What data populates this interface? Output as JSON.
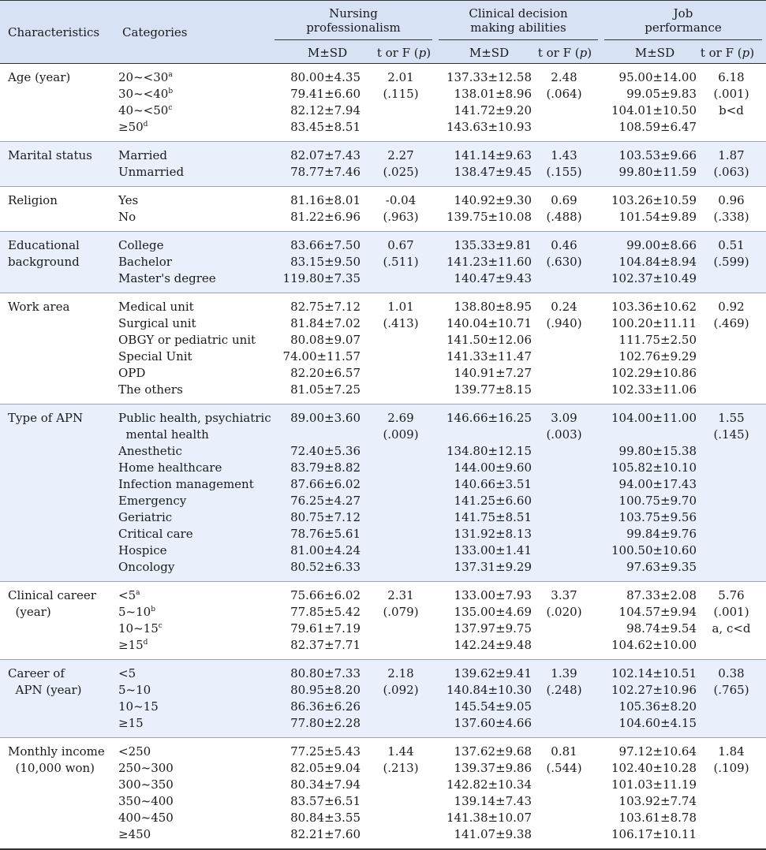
{
  "header": {
    "characteristics": "Characteristics",
    "categories": "Categories",
    "groups": [
      {
        "line1": "Nursing",
        "line2": "professionalism"
      },
      {
        "line1": "Clinical decision",
        "line2": "making abilities"
      },
      {
        "line1": "Job",
        "line2": "performance"
      }
    ],
    "msd": "M±SD",
    "stat_prefix": "t or F (",
    "stat_p": "p",
    "stat_suffix": ")"
  },
  "groups": [
    {
      "characteristic": [
        "Age (year)"
      ],
      "rows": [
        {
          "cat": "20~<30",
          "sup": "a",
          "np": "80.00±4.35",
          "cd": "137.33±12.58",
          "jp": "95.00±14.00"
        },
        {
          "cat": "30~<40",
          "sup": "b",
          "np": "79.41±6.60",
          "cd": "138.01±8.96",
          "jp": "99.05±9.83"
        },
        {
          "cat": "40~<50",
          "sup": "c",
          "np": "82.12±7.94",
          "cd": "141.72±9.20",
          "jp": "104.01±10.50"
        },
        {
          "cat": "≥50",
          "sup": "d",
          "np": "83.45±8.51",
          "cd": "143.63±10.93",
          "jp": "108.59±6.47"
        }
      ],
      "np_stat": [
        "2.01",
        "(.115)"
      ],
      "cd_stat": [
        "2.48",
        "(.064)"
      ],
      "jp_stat": [
        "6.18",
        "(.001)",
        "b<d"
      ]
    },
    {
      "characteristic": [
        "Marital status"
      ],
      "rows": [
        {
          "cat": "Married",
          "np": "82.07±7.43",
          "cd": "141.14±9.63",
          "jp": "103.53±9.66"
        },
        {
          "cat": "Unmarried",
          "np": "78.77±7.46",
          "cd": "138.47±9.45",
          "jp": "99.80±11.59"
        }
      ],
      "np_stat": [
        "2.27",
        "(.025)"
      ],
      "cd_stat": [
        "1.43",
        "(.155)"
      ],
      "jp_stat": [
        "1.87",
        "(.063)"
      ]
    },
    {
      "characteristic": [
        "Religion"
      ],
      "rows": [
        {
          "cat": "Yes",
          "np": "81.16±8.01",
          "cd": "140.92±9.30",
          "jp": "103.26±10.59"
        },
        {
          "cat": "No",
          "np": "81.22±6.96",
          "cd": "139.75±10.08",
          "jp": "101.54±9.89"
        }
      ],
      "np_stat": [
        "-0.04",
        "(.963)"
      ],
      "cd_stat": [
        "0.69",
        "(.488)"
      ],
      "jp_stat": [
        "0.96",
        "(.338)"
      ]
    },
    {
      "characteristic": [
        "Educational",
        "background"
      ],
      "rows": [
        {
          "cat": "College",
          "np": "83.66±7.50",
          "cd": "135.33±9.81",
          "jp": "99.00±8.66"
        },
        {
          "cat": "Bachelor",
          "np": "83.15±9.50",
          "cd": "141.23±11.60",
          "jp": "104.84±8.94"
        },
        {
          "cat": "Master's degree",
          "np": "119.80±7.35",
          "cd": "140.47±9.43",
          "jp": "102.37±10.49"
        }
      ],
      "np_stat": [
        "0.67",
        "(.511)"
      ],
      "cd_stat": [
        "0.46",
        "(.630)"
      ],
      "jp_stat": [
        "0.51",
        "(.599)"
      ]
    },
    {
      "characteristic": [
        "Work area"
      ],
      "rows": [
        {
          "cat": "Medical unit",
          "np": "82.75±7.12",
          "cd": "138.80±8.95",
          "jp": "103.36±10.62"
        },
        {
          "cat": "Surgical unit",
          "np": "81.84±7.02",
          "cd": "140.04±10.71",
          "jp": "100.20±11.11"
        },
        {
          "cat": "OBGY or pediatric unit",
          "np": "80.08±9.07",
          "cd": "141.50±12.06",
          "jp": "111.75±2.50"
        },
        {
          "cat": "Special Unit",
          "np": "74.00±11.57",
          "cd": "141.33±11.47",
          "jp": "102.76±9.29"
        },
        {
          "cat": "OPD",
          "np": "82.20±6.57",
          "cd": "140.91±7.27",
          "jp": "102.29±10.86"
        },
        {
          "cat": "The others",
          "np": "81.05±7.25",
          "cd": "139.77±8.15",
          "jp": "102.33±11.06"
        }
      ],
      "np_stat": [
        "1.01",
        "(.413)"
      ],
      "cd_stat": [
        "0.24",
        "(.940)"
      ],
      "jp_stat": [
        "0.92",
        "(.469)"
      ]
    },
    {
      "characteristic": [
        "Type of APN"
      ],
      "rows": [
        {
          "cat": "Public health, psychiatric",
          "np": "89.00±3.60",
          "cd": "146.66±16.25",
          "jp": "104.00±11.00"
        },
        {
          "cat": "  mental health"
        },
        {
          "cat": "Anesthetic",
          "np": "72.40±5.36",
          "cd": "134.80±12.15",
          "jp": "99.80±15.38"
        },
        {
          "cat": "Home healthcare",
          "np": "83.79±8.82",
          "cd": "144.00±9.60",
          "jp": "105.82±10.10"
        },
        {
          "cat": "Infection management",
          "np": "87.66±6.02",
          "cd": "140.66±3.51",
          "jp": "94.00±17.43"
        },
        {
          "cat": "Emergency",
          "np": "76.25±4.27",
          "cd": "141.25±6.60",
          "jp": "100.75±9.70"
        },
        {
          "cat": "Geriatric",
          "np": "80.75±7.12",
          "cd": "141.75±8.51",
          "jp": "103.75±9.56"
        },
        {
          "cat": "Critical care",
          "np": "78.76±5.61",
          "cd": "131.92±8.13",
          "jp": "99.84±9.76"
        },
        {
          "cat": "Hospice",
          "np": "81.00±4.24",
          "cd": "133.00±1.41",
          "jp": "100.50±10.60"
        },
        {
          "cat": "Oncology",
          "np": "80.52±6.33",
          "cd": "137.31±9.29",
          "jp": "97.63±9.35"
        }
      ],
      "np_stat": [
        "2.69",
        "(.009)"
      ],
      "cd_stat": [
        "3.09",
        "(.003)"
      ],
      "jp_stat": [
        "1.55",
        "(.145)"
      ]
    },
    {
      "characteristic": [
        "Clinical career",
        "  (year)"
      ],
      "rows": [
        {
          "cat": "<5",
          "sup": "a",
          "np": "75.66±6.02",
          "cd": "133.00±7.93",
          "jp": "87.33±2.08"
        },
        {
          "cat": "5~10",
          "sup": "b",
          "np": "77.85±5.42",
          "cd": "135.00±4.69",
          "jp": "104.57±9.94"
        },
        {
          "cat": "10~15",
          "sup": "c",
          "np": "79.61±7.19",
          "cd": "137.97±9.75",
          "jp": "98.74±9.54"
        },
        {
          "cat": "≥15",
          "sup": "d",
          "np": "82.37±7.71",
          "cd": "142.24±9.48",
          "jp": "104.62±10.00"
        }
      ],
      "np_stat": [
        "2.31",
        "(.079)"
      ],
      "cd_stat": [
        "3.37",
        "(.020)"
      ],
      "jp_stat": [
        "5.76",
        "(.001)",
        "a, c<d"
      ]
    },
    {
      "characteristic": [
        "Career of",
        "  APN (year)"
      ],
      "rows": [
        {
          "cat": "<5",
          "np": "80.80±7.33",
          "cd": "139.62±9.41",
          "jp": "102.14±10.51"
        },
        {
          "cat": "5~10",
          "np": "80.95±8.20",
          "cd": "140.84±10.30",
          "jp": "102.27±10.96"
        },
        {
          "cat": "10~15",
          "np": "86.36±6.26",
          "cd": "145.54±9.05",
          "jp": "105.36±8.20"
        },
        {
          "cat": "≥15",
          "np": "77.80±2.28",
          "cd": "137.60±4.66",
          "jp": "104.60±4.15"
        }
      ],
      "np_stat": [
        "2.18",
        "(.092)"
      ],
      "cd_stat": [
        "1.39",
        "(.248)"
      ],
      "jp_stat": [
        "0.38",
        "(.765)"
      ]
    },
    {
      "characteristic": [
        "Monthly income",
        "  (10,000 won)"
      ],
      "rows": [
        {
          "cat": "<250",
          "np": "77.25±5.43",
          "cd": "137.62±9.68",
          "jp": "97.12±10.64"
        },
        {
          "cat": "250~300",
          "np": "82.05±9.04",
          "cd": "139.37±9.86",
          "jp": "102.40±10.28"
        },
        {
          "cat": "300~350",
          "np": "80.34±7.94",
          "cd": "142.82±10.34",
          "jp": "101.03±11.19"
        },
        {
          "cat": "350~400",
          "np": "83.57±6.51",
          "cd": "139.14±7.43",
          "jp": "103.92±7.74"
        },
        {
          "cat": "400~450",
          "np": "80.84±3.55",
          "cd": "141.38±10.07",
          "jp": "103.61±8.78"
        },
        {
          "cat": "≥450",
          "np": "82.21±7.60",
          "cd": "141.07±9.38",
          "jp": "106.17±10.11"
        }
      ],
      "np_stat": [
        "1.44",
        "(.213)"
      ],
      "cd_stat": [
        "0.81",
        "(.544)"
      ],
      "jp_stat": [
        "1.84",
        "(.109)"
      ]
    }
  ]
}
